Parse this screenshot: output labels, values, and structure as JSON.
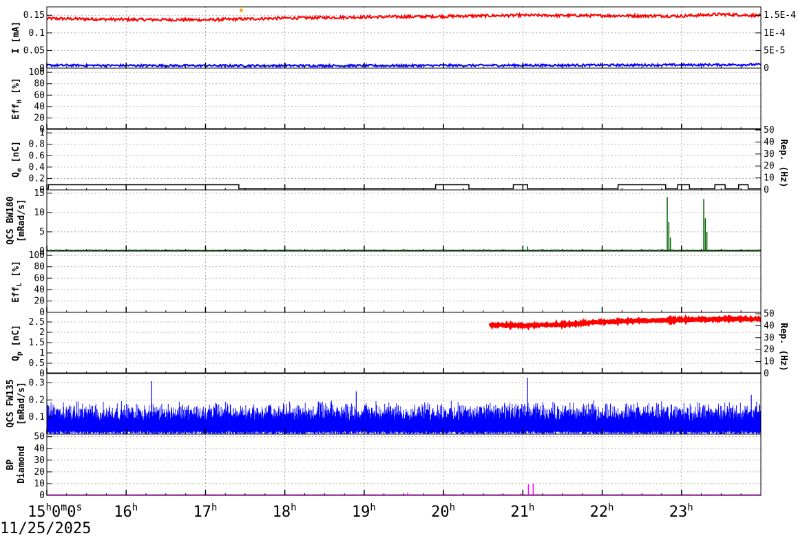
{
  "date_label": "11/25/2025",
  "x_axis": {
    "start_hour": 15,
    "end_hour": 24,
    "ticks": [
      {
        "hour": 15,
        "label": "15",
        "sup": "h",
        "label2": "0",
        "sup2": "m",
        "label3": "0",
        "sup3": "s"
      },
      {
        "hour": 16,
        "label": "16",
        "sup": "h"
      },
      {
        "hour": 17,
        "label": "17",
        "sup": "h"
      },
      {
        "hour": 18,
        "label": "18",
        "sup": "h"
      },
      {
        "hour": 19,
        "label": "19",
        "sup": "h"
      },
      {
        "hour": 20,
        "label": "20",
        "sup": "h"
      },
      {
        "hour": 21,
        "label": "21",
        "sup": "h"
      },
      {
        "hour": 22,
        "label": "22",
        "sup": "h"
      },
      {
        "hour": 23,
        "label": "23",
        "sup": "h"
      }
    ]
  },
  "chart_data": [
    {
      "type": "line",
      "ylabel": "I [mA]",
      "ylim": [
        0,
        0.17
      ],
      "yticks": [
        "0",
        "0.05",
        "0.1",
        "0.15"
      ],
      "ytick_values": [
        0,
        0.05,
        0.1,
        0.15
      ],
      "right_axis": {
        "label": "",
        "ylim": [
          0,
          0.00017
        ],
        "ticks": [
          "0",
          "5E-5",
          "1E-4",
          "1.5E-4"
        ],
        "tick_values": [
          0,
          5e-05,
          0.0001,
          0.00015
        ]
      },
      "grid": true,
      "series": [
        {
          "color": "#ff0000",
          "points": [
            [
              15.0,
              0.141
            ],
            [
              16.0,
              0.138
            ],
            [
              17.0,
              0.137
            ],
            [
              18.0,
              0.142
            ],
            [
              19.0,
              0.145
            ],
            [
              20.0,
              0.147
            ],
            [
              21.0,
              0.15
            ],
            [
              22.0,
              0.149
            ],
            [
              23.0,
              0.148
            ],
            [
              23.5,
              0.153
            ],
            [
              24.0,
              0.149
            ]
          ],
          "noise": 0.004,
          "kind": "noisy"
        },
        {
          "color": "#0000ff",
          "points": [
            [
              15.0,
              0.008
            ],
            [
              17.0,
              0.007
            ],
            [
              19.0,
              0.007
            ],
            [
              21.0,
              0.008
            ],
            [
              23.0,
              0.009
            ],
            [
              24.0,
              0.01
            ]
          ],
          "noise": 0.003,
          "kind": "noisy"
        }
      ]
    },
    {
      "type": "line",
      "ylabel": "Eff",
      "ylabel_sub": "H",
      "ylabel_suffix": " [%]",
      "ylim": [
        0,
        105
      ],
      "yticks": [
        "0",
        "20",
        "40",
        "60",
        "80",
        "100"
      ],
      "ytick_values": [
        0,
        20,
        40,
        60,
        80,
        100
      ],
      "grid": true,
      "series": []
    },
    {
      "type": "line",
      "ylabel": "Q",
      "ylabel_sub": "e",
      "ylabel_suffix": " [nC]",
      "ylim": [
        0,
        1.05
      ],
      "yticks": [
        "0",
        "0.2",
        "0.4",
        "0.6",
        "0.8",
        "1"
      ],
      "ytick_values": [
        0,
        0.2,
        0.4,
        0.6,
        0.8,
        1.0
      ],
      "right_axis": {
        "label": "Rep. (Hz)",
        "ylim": [
          0,
          50
        ],
        "ticks": [
          "0",
          "10",
          "20",
          "30",
          "40",
          "50"
        ],
        "tick_values": [
          0,
          10,
          20,
          30,
          40,
          50
        ]
      },
      "grid": true,
      "series": [
        {
          "color": "#000000",
          "kind": "step",
          "base": 0.02,
          "high": 0.09,
          "segments": [
            [
              15.02,
              17.42
            ],
            [
              19.9,
              20.32
            ],
            [
              20.88,
              21.06
            ],
            [
              22.2,
              22.8
            ],
            [
              22.95,
              23.1
            ],
            [
              23.42,
              23.55
            ],
            [
              23.72,
              23.84
            ]
          ]
        }
      ]
    },
    {
      "type": "line",
      "ylabel": "QCS BW180",
      "ylabel2": "[mRad/s]",
      "ylim": [
        0,
        15.5
      ],
      "yticks": [
        "0",
        "5",
        "10",
        "15"
      ],
      "ytick_values": [
        0,
        5,
        10,
        15
      ],
      "grid": true,
      "series": [
        {
          "color": "#006400",
          "kind": "spikes",
          "base": 0.15,
          "noise": 0.15,
          "spikes": [
            [
              22.82,
              14.0
            ],
            [
              22.84,
              7.5
            ],
            [
              22.86,
              3.5
            ],
            [
              23.28,
              13.5
            ],
            [
              23.3,
              8.5
            ],
            [
              23.32,
              5.0
            ],
            [
              21.06,
              1.2
            ]
          ]
        }
      ]
    },
    {
      "type": "line",
      "ylabel": "Eff",
      "ylabel_sub": "L",
      "ylabel_suffix": " [%]",
      "ylim": [
        0,
        105
      ],
      "yticks": [
        "0",
        "20",
        "40",
        "60",
        "80",
        "100"
      ],
      "ytick_values": [
        0,
        20,
        40,
        60,
        80,
        100
      ],
      "grid": true,
      "series": []
    },
    {
      "type": "scatter",
      "ylabel": "Q",
      "ylabel_sub": "p",
      "ylabel_suffix": " [nC]",
      "ylim": [
        0,
        2.9
      ],
      "yticks": [
        "0",
        "0.5",
        "1",
        "1.5",
        "2",
        "2.5"
      ],
      "ytick_values": [
        0,
        0.5,
        1,
        1.5,
        2,
        2.5
      ],
      "right_axis": {
        "label": "Rep. (Hz)",
        "ylim": [
          0,
          50
        ],
        "ticks": [
          "0",
          "10",
          "20",
          "30",
          "40",
          "50"
        ],
        "tick_values": [
          0,
          10,
          20,
          30,
          40,
          50
        ]
      },
      "grid": true,
      "series": [
        {
          "color": "#ff0000",
          "kind": "thick",
          "noise": 0.04,
          "points": [
            [
              20.58,
              2.35
            ],
            [
              21.0,
              2.32
            ],
            [
              21.5,
              2.38
            ],
            [
              22.0,
              2.5
            ],
            [
              22.5,
              2.56
            ],
            [
              23.0,
              2.6
            ],
            [
              23.5,
              2.64
            ],
            [
              24.0,
              2.65
            ]
          ]
        }
      ]
    },
    {
      "type": "line",
      "ylabel": "QCS FW135",
      "ylabel2": "[mRad/s]",
      "ylim": [
        0,
        0.35
      ],
      "yticks": [
        "0.1",
        "0.2",
        "0.3"
      ],
      "ytick_values": [
        0.1,
        0.2,
        0.3
      ],
      "grid": true,
      "series": [
        {
          "color": "#0000ff",
          "kind": "dense",
          "low": 0.0,
          "mid": 0.08,
          "high": 0.2,
          "spikes": [
            [
              15.0,
              0.22
            ],
            [
              16.32,
              0.31
            ],
            [
              18.9,
              0.25
            ],
            [
              21.06,
              0.33
            ],
            [
              23.88,
              0.23
            ]
          ]
        }
      ]
    },
    {
      "type": "line",
      "ylabel": "BP",
      "ylabel2": "Diamond",
      "ylim": [
        0,
        51
      ],
      "yticks": [
        "0",
        "10",
        "20",
        "30",
        "40",
        "50"
      ],
      "ytick_values": [
        0,
        10,
        20,
        30,
        40,
        50
      ],
      "grid": true,
      "series": [
        {
          "color": "#ff00ff",
          "kind": "spikes",
          "base": 0.3,
          "noise": 0.2,
          "spikes": [
            [
              19.55,
              2.5
            ],
            [
              20.02,
              1.5
            ],
            [
              21.07,
              9.5
            ],
            [
              21.13,
              10.0
            ],
            [
              20.97,
              1.5
            ]
          ]
        }
      ]
    }
  ],
  "extras": {
    "marker_color": "#ffa500",
    "marker_x": 17.45,
    "marker_y": 0.168
  }
}
